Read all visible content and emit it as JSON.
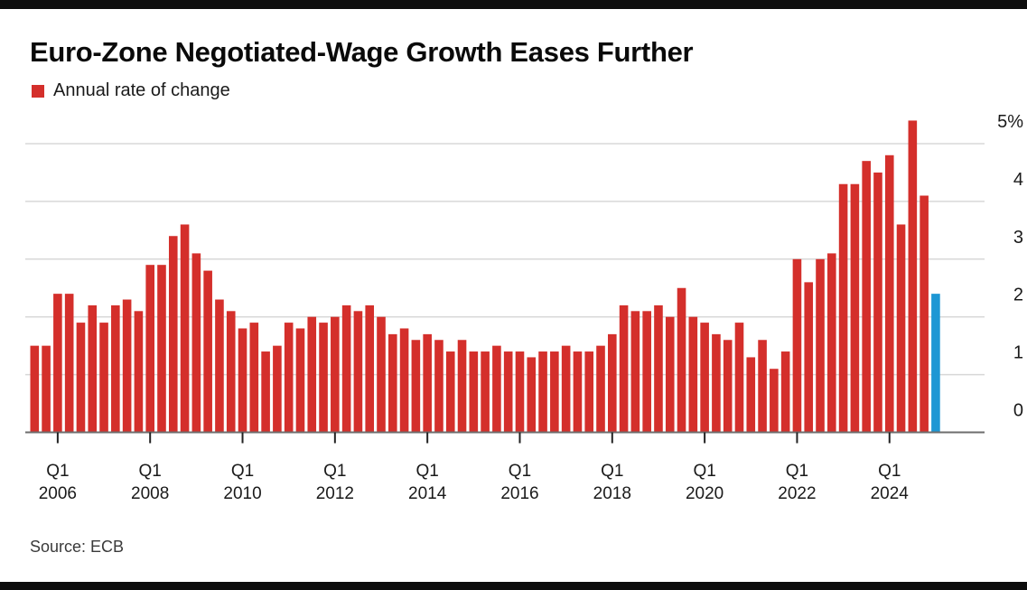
{
  "page": {
    "title": "Euro-Zone Negotiated-Wage Growth Eases Further",
    "legend_label": "Annual rate of change",
    "source": "Source: ECB"
  },
  "colors": {
    "bar": "#d42f2b",
    "highlight": "#1d97d4",
    "grid": "#d8d8d8",
    "baseline": "#6e6e6e",
    "tick": "#222222",
    "text": "#1a1a1a",
    "frame": "#0d0d0d"
  },
  "chart_data": {
    "type": "bar",
    "title": "Euro-Zone Negotiated-Wage Growth Eases Further",
    "legend": [
      "Annual rate of change"
    ],
    "legend_position": "top-left",
    "unit": "percent annual rate of change",
    "source": "ECB",
    "grid": "horizontal",
    "ylim": [
      0,
      5.5
    ],
    "y_axis_side": "right",
    "y_ticks": [
      {
        "value": 5,
        "label": "5%"
      },
      {
        "value": 4,
        "label": "4"
      },
      {
        "value": 3,
        "label": "3"
      },
      {
        "value": 2,
        "label": "2"
      },
      {
        "value": 1,
        "label": "1"
      },
      {
        "value": 0,
        "label": "0"
      }
    ],
    "x_ticks": [
      {
        "index": 2,
        "line1": "Q1",
        "line2": "2006"
      },
      {
        "index": 10,
        "line1": "Q1",
        "line2": "2008"
      },
      {
        "index": 18,
        "line1": "Q1",
        "line2": "2010"
      },
      {
        "index": 26,
        "line1": "Q1",
        "line2": "2012"
      },
      {
        "index": 34,
        "line1": "Q1",
        "line2": "2014"
      },
      {
        "index": 42,
        "line1": "Q1",
        "line2": "2016"
      },
      {
        "index": 50,
        "line1": "Q1",
        "line2": "2018"
      },
      {
        "index": 58,
        "line1": "Q1",
        "line2": "2020"
      },
      {
        "index": 66,
        "line1": "Q1",
        "line2": "2022"
      },
      {
        "index": 74,
        "line1": "Q1",
        "line2": "2024"
      }
    ],
    "categories": [
      "2005 Q3",
      "2005 Q4",
      "2006 Q1",
      "2006 Q2",
      "2006 Q3",
      "2006 Q4",
      "2007 Q1",
      "2007 Q2",
      "2007 Q3",
      "2007 Q4",
      "2008 Q1",
      "2008 Q2",
      "2008 Q3",
      "2008 Q4",
      "2009 Q1",
      "2009 Q2",
      "2009 Q3",
      "2009 Q4",
      "2010 Q1",
      "2010 Q2",
      "2010 Q3",
      "2010 Q4",
      "2011 Q1",
      "2011 Q2",
      "2011 Q3",
      "2011 Q4",
      "2012 Q1",
      "2012 Q2",
      "2012 Q3",
      "2012 Q4",
      "2013 Q1",
      "2013 Q2",
      "2013 Q3",
      "2013 Q4",
      "2014 Q1",
      "2014 Q2",
      "2014 Q3",
      "2014 Q4",
      "2015 Q1",
      "2015 Q2",
      "2015 Q3",
      "2015 Q4",
      "2016 Q1",
      "2016 Q2",
      "2016 Q3",
      "2016 Q4",
      "2017 Q1",
      "2017 Q2",
      "2017 Q3",
      "2017 Q4",
      "2018 Q1",
      "2018 Q2",
      "2018 Q3",
      "2018 Q4",
      "2019 Q1",
      "2019 Q2",
      "2019 Q3",
      "2019 Q4",
      "2020 Q1",
      "2020 Q2",
      "2020 Q3",
      "2020 Q4",
      "2021 Q1",
      "2021 Q2",
      "2021 Q3",
      "2021 Q4",
      "2022 Q1",
      "2022 Q2",
      "2022 Q3",
      "2022 Q4",
      "2023 Q1",
      "2023 Q2",
      "2023 Q3",
      "2023 Q4",
      "2024 Q1",
      "2024 Q2",
      "2024 Q3",
      "2024 Q4",
      "2025 Q1"
    ],
    "values": [
      1.5,
      1.5,
      2.4,
      2.4,
      1.9,
      2.2,
      1.9,
      2.2,
      2.3,
      2.1,
      2.9,
      2.9,
      3.4,
      3.6,
      3.1,
      2.8,
      2.3,
      2.1,
      1.8,
      1.9,
      1.4,
      1.5,
      1.9,
      1.8,
      2.0,
      1.9,
      2.0,
      2.2,
      2.1,
      2.2,
      2.0,
      1.7,
      1.8,
      1.6,
      1.7,
      1.6,
      1.4,
      1.6,
      1.4,
      1.4,
      1.5,
      1.4,
      1.4,
      1.3,
      1.4,
      1.4,
      1.5,
      1.4,
      1.4,
      1.5,
      1.7,
      2.2,
      2.1,
      2.1,
      2.2,
      2.0,
      2.5,
      2.0,
      1.9,
      1.7,
      1.6,
      1.9,
      1.3,
      1.6,
      1.1,
      1.4,
      3.0,
      2.6,
      3.0,
      3.1,
      4.3,
      4.3,
      4.7,
      4.5,
      4.8,
      3.6,
      5.4,
      4.1,
      2.4
    ],
    "highlight_index": 78,
    "series_color": "#d42f2b",
    "highlight_color": "#1d97d4"
  }
}
